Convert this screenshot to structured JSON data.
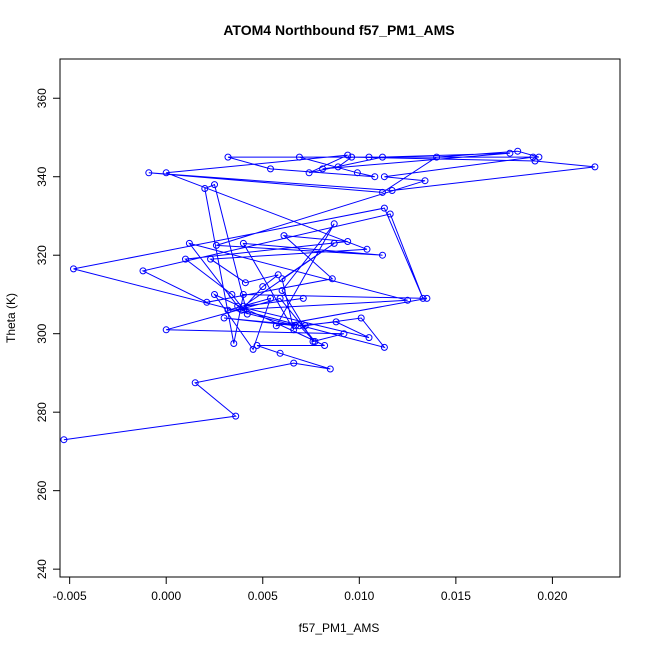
{
  "chart_data": {
    "type": "line",
    "title": "ATOM4 Northbound f57_PM1_AMS",
    "xlabel": "f57_PM1_AMS",
    "ylabel": "Theta (K)",
    "xlim": [
      -0.0055,
      0.0235
    ],
    "ylim": [
      238,
      370
    ],
    "x_ticks": [
      -0.005,
      0.0,
      0.005,
      0.01,
      0.015,
      0.02
    ],
    "x_tick_labels": [
      "-0.005",
      "0.000",
      "0.005",
      "0.010",
      "0.015",
      "0.020"
    ],
    "y_ticks": [
      240,
      260,
      280,
      300,
      320,
      340,
      360
    ],
    "y_tick_labels": [
      "240",
      "260",
      "280",
      "300",
      "320",
      "340",
      "360"
    ],
    "grid": false,
    "marker": "open-circle",
    "series": [
      {
        "name": "f57_PM1_AMS",
        "color": "#0000ff",
        "x": [
          -0.0053,
          0.0036,
          0.0015,
          0.0066,
          0.0085,
          0.0059,
          0.0047,
          0.0082,
          0.0025,
          0.0045,
          0.0054,
          0.0032,
          0.0125,
          0.0012,
          0.0037,
          0.0105,
          0.0088,
          0.0069,
          0.0077,
          0.0059,
          0.0,
          0.0092,
          0.0076,
          0.006,
          0.0087,
          0.0057,
          0.0135,
          0.004,
          0.0035,
          0.002,
          0.0025,
          0.0042,
          0.0034,
          0.001,
          0.0094,
          0.0061,
          0.0086,
          0.0021,
          -0.0012,
          0.0116,
          0.0133,
          0.0113,
          -0.0048,
          0.0067,
          0.003,
          0.0072,
          0.0101,
          0.0113,
          0.0039,
          0.005,
          0.0058,
          0.0041,
          0.0023,
          0.0104,
          0.0,
          0.0094,
          0.0074,
          0.0112,
          0.0178,
          0.0081,
          0.0089,
          0.0096,
          0.0191,
          0.0222,
          0.0117,
          -0.0009,
          0.0112,
          0.014,
          0.0182,
          0.0193,
          0.0032,
          0.0054,
          0.0108,
          0.0099,
          0.0069,
          0.0105,
          0.019,
          0.0113,
          0.0134,
          0.0026,
          0.0112,
          0.004,
          0.0066,
          0.006,
          0.0087,
          0.004,
          0.0071
        ],
        "y": [
          273,
          279,
          287.5,
          292.5,
          291,
          295,
          297,
          297,
          310,
          296,
          309,
          306,
          308.5,
          323,
          307,
          299,
          303,
          302,
          298,
          309,
          301,
          300,
          298,
          311,
          328,
          302,
          309,
          310,
          297.5,
          337,
          338,
          305,
          310,
          319,
          323.5,
          325,
          314,
          308,
          316,
          330.5,
          309,
          332,
          316.5,
          302,
          304,
          302,
          304,
          296.5,
          306,
          312,
          315,
          313,
          319,
          321.5,
          341,
          345.5,
          341,
          345,
          346,
          342,
          342.5,
          345,
          344,
          342.5,
          336.5,
          341,
          336,
          345,
          346.5,
          345,
          345,
          342,
          340,
          341,
          345,
          345,
          345,
          340,
          339,
          322.5,
          320,
          323,
          301,
          314,
          323,
          307,
          309
        ]
      }
    ]
  }
}
